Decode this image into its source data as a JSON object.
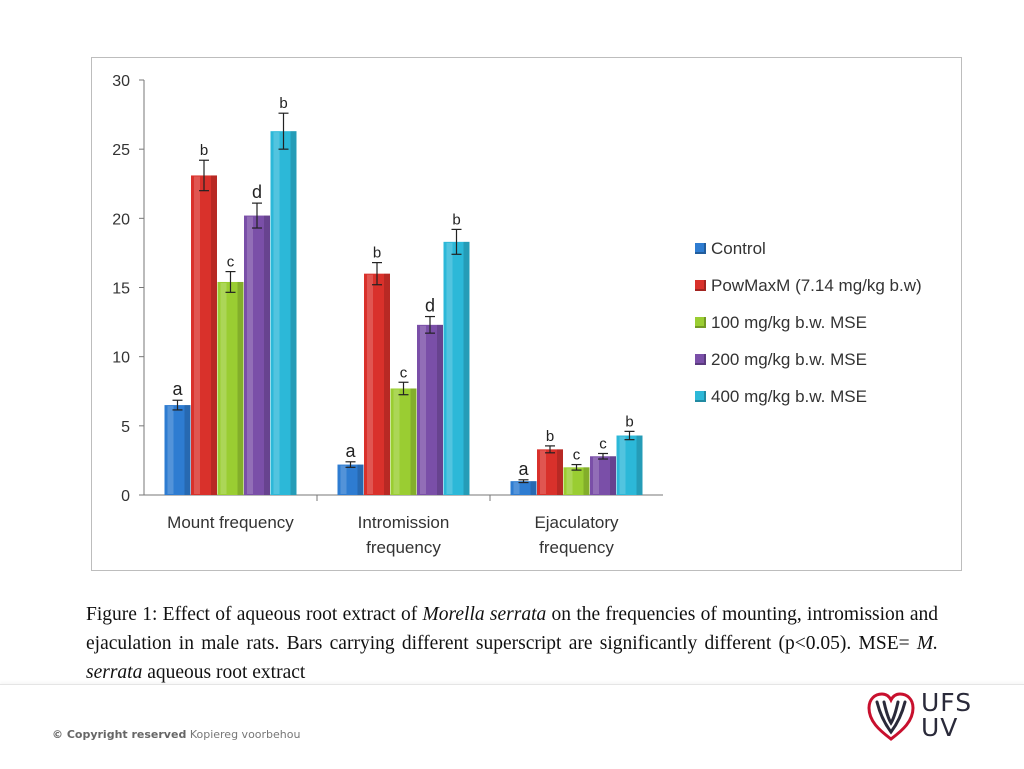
{
  "chart_data": {
    "type": "bar",
    "categories": [
      "Mount frequency",
      "Intromission frequency",
      "Ejaculatory frequency"
    ],
    "category_lines": [
      [
        "Mount frequency"
      ],
      [
        "Intromission",
        "frequency"
      ],
      [
        "Ejaculatory",
        "frequency"
      ]
    ],
    "series": [
      {
        "name": "Control",
        "color": "#2e7cd1",
        "values": [
          6.5,
          2.2,
          1.0
        ],
        "errors": [
          0.35,
          0.2,
          0.1
        ],
        "letters": [
          "a",
          "a",
          "a"
        ]
      },
      {
        "name": "PowMaxM (7.14 mg/kg b.w)",
        "color": "#d9312b",
        "values": [
          23.1,
          16.0,
          3.3
        ],
        "errors": [
          1.1,
          0.8,
          0.25
        ],
        "letters": [
          "b",
          "b",
          "b"
        ]
      },
      {
        "name": "100 mg/kg b.w. MSE",
        "color": "#9acd32",
        "values": [
          15.4,
          7.7,
          2.0
        ],
        "errors": [
          0.75,
          0.45,
          0.2
        ],
        "letters": [
          "c",
          "c",
          "c"
        ]
      },
      {
        "name": "200 mg/kg b.w. MSE",
        "color": "#7a4fa8",
        "values": [
          20.2,
          12.3,
          2.8
        ],
        "errors": [
          0.9,
          0.6,
          0.2
        ],
        "letters": [
          "d",
          "d",
          "c"
        ]
      },
      {
        "name": "400 mg/kg b.w. MSE",
        "color": "#2cb8d8",
        "values": [
          26.3,
          18.3,
          4.3
        ],
        "errors": [
          1.3,
          0.9,
          0.3
        ],
        "letters": [
          "b",
          "b",
          "b"
        ]
      }
    ],
    "ylim": [
      0,
      30
    ],
    "yticks": [
      0,
      5,
      10,
      15,
      20,
      25,
      30
    ],
    "legend_position": "right",
    "grid": false
  },
  "caption": {
    "label": "Figure 1:",
    "part1": " Effect of aqueous root extract of ",
    "species": "Morella serrata",
    "part2": " on the frequencies of mounting, intromission and ejaculation in male rats. Bars carrying different superscript are significantly different (p<0.05). MSE= ",
    "species_abbr": "M. serrata",
    "part3": " aqueous root extract"
  },
  "footer": {
    "copyright_bold": "© Copyright reserved",
    "copyright_rest": " Kopiereg voorbehou",
    "logo_line1": "UFS",
    "logo_line2": "UV",
    "logo_color": "#c8102e"
  }
}
